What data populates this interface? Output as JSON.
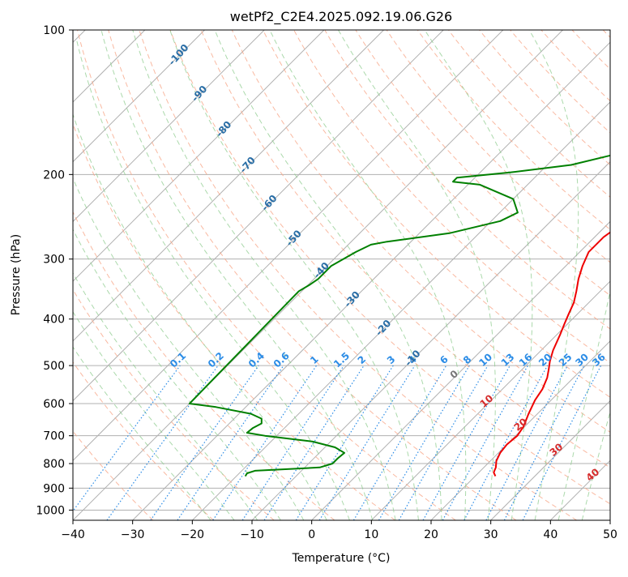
{
  "chart_data": {
    "type": "line",
    "title": "wetPf2_C2E4.2025.092.19.06.G26",
    "xlabel": "Temperature (°C)",
    "ylabel": "Pressure (hPa)",
    "xlim": [
      -40,
      50
    ],
    "ylim": [
      1050,
      100
    ],
    "y_scale": "log",
    "grid": true,
    "x_ticks": [
      "−40",
      "−30",
      "−20",
      "−10",
      "0",
      "10",
      "20",
      "30",
      "40",
      "50"
    ],
    "y_ticks": [
      "100",
      "200",
      "300",
      "400",
      "500",
      "600",
      "700",
      "800",
      "900",
      "1000"
    ],
    "mixing_ratio_labels": [
      "0.1",
      "0.2",
      "0.4",
      "0.6",
      "1",
      "1.5",
      "2",
      "3",
      "4",
      "6",
      "8",
      "10",
      "13",
      "16",
      "20",
      "25",
      "30",
      "36"
    ],
    "dry_adiabat_labels": [
      "-100",
      "-90",
      "-80",
      "-70",
      "-60",
      "-50",
      "-40",
      "-30",
      "-20",
      "-10"
    ],
    "moist_adiabat_labels": [
      "0",
      "10",
      "20",
      "30",
      "40"
    ],
    "series": [
      {
        "color": "#ee0000",
        "points": [
          [
            23.4,
            850
          ],
          [
            22.5,
            835
          ],
          [
            22.0,
            815
          ],
          [
            21.0,
            790
          ],
          [
            20.3,
            760
          ],
          [
            20.0,
            730
          ],
          [
            20.3,
            700
          ],
          [
            19.8,
            670
          ],
          [
            18.5,
            630
          ],
          [
            17.3,
            590
          ],
          [
            16.7,
            560
          ],
          [
            15.6,
            530
          ],
          [
            14.5,
            510
          ],
          [
            13.3,
            490
          ],
          [
            12.0,
            465
          ],
          [
            10.5,
            430
          ],
          [
            9.5,
            410
          ],
          [
            8.5,
            390
          ],
          [
            7.5,
            370
          ],
          [
            6.0,
            350
          ],
          [
            4.3,
            330
          ],
          [
            2.8,
            310
          ],
          [
            1.5,
            290
          ],
          [
            1.5,
            270
          ],
          [
            2.5,
            250
          ],
          [
            4.5,
            230
          ],
          [
            6.5,
            215
          ],
          [
            8.0,
            205
          ],
          [
            8.7,
            195
          ],
          [
            8.4,
            180
          ],
          [
            8.5,
            165
          ],
          [
            8.6,
            150
          ],
          [
            9.8,
            140
          ],
          [
            11.5,
            128
          ],
          [
            12.3,
            120
          ],
          [
            12.8,
            113
          ],
          [
            12.3,
            106
          ],
          [
            12.3,
            100
          ]
        ]
      },
      {
        "color": "#008000",
        "points": [
          [
            -18.5,
            850
          ],
          [
            -18.7,
            838
          ],
          [
            -17.8,
            828
          ],
          [
            -7.5,
            815
          ],
          [
            -6.0,
            800
          ],
          [
            -6.0,
            780
          ],
          [
            -5.8,
            760
          ],
          [
            -8.3,
            740
          ],
          [
            -13.0,
            720
          ],
          [
            -22.0,
            700
          ],
          [
            -25.5,
            690
          ],
          [
            -25.3,
            675
          ],
          [
            -24.6,
            660
          ],
          [
            -25.4,
            645
          ],
          [
            -28.0,
            630
          ],
          [
            -35.0,
            610
          ],
          [
            -40.0,
            600
          ],
          [
            -40.5,
            350
          ],
          [
            -39.8,
            340
          ],
          [
            -39.3,
            330
          ],
          [
            -39.3,
            310
          ],
          [
            -37.5,
            290
          ],
          [
            -36.2,
            280
          ],
          [
            -34.0,
            276
          ],
          [
            -25.0,
            265
          ],
          [
            -18.5,
            250
          ],
          [
            -17.0,
            240
          ],
          [
            -20.0,
            225
          ],
          [
            -28.0,
            210
          ],
          [
            -33.0,
            207
          ],
          [
            -33.0,
            203
          ],
          [
            -25.0,
            198
          ],
          [
            -16.0,
            191
          ],
          [
            -9.5,
            180
          ],
          [
            -8.5,
            170
          ],
          [
            -8.4,
            158
          ],
          [
            -7.5,
            150
          ],
          [
            -5.5,
            140
          ],
          [
            -3.0,
            125
          ],
          [
            2.0,
            110
          ],
          [
            5.0,
            100
          ]
        ]
      }
    ]
  }
}
